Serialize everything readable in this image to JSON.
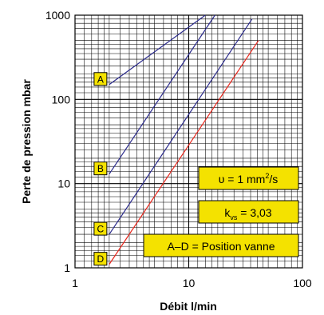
{
  "chart_data": {
    "type": "line",
    "xlabel": "Débit l/min",
    "ylabel": "Perte de pression mbar",
    "x_scale": "log",
    "y_scale": "log",
    "xlim": [
      1,
      100
    ],
    "ylim": [
      1,
      1000
    ],
    "x_ticks": [
      "1",
      "10",
      "100"
    ],
    "y_ticks": [
      "1",
      "10",
      "100",
      "1000"
    ],
    "grid": true,
    "series": [
      {
        "name": "A",
        "color": "#2b2b8c",
        "x": [
          2,
          14
        ],
        "y": [
          150,
          1000
        ]
      },
      {
        "name": "B",
        "color": "#2b2b8c",
        "x": [
          2,
          17
        ],
        "y": [
          13,
          1000
        ]
      },
      {
        "name": "C",
        "color": "#2b2b8c",
        "x": [
          2,
          36
        ],
        "y": [
          2.5,
          900
        ]
      },
      {
        "name": "D",
        "color": "#e8261c",
        "x": [
          2,
          41
        ],
        "y": [
          1.1,
          500
        ]
      }
    ],
    "annotations": {
      "viscosity": {
        "prefix": "υ = 1 mm",
        "sup": "2",
        "suffix": "/s"
      },
      "kvs": {
        "prefix": "k",
        "sub": "vs",
        "suffix": " = 3,03"
      },
      "position": "A–D = Position vanne"
    }
  }
}
